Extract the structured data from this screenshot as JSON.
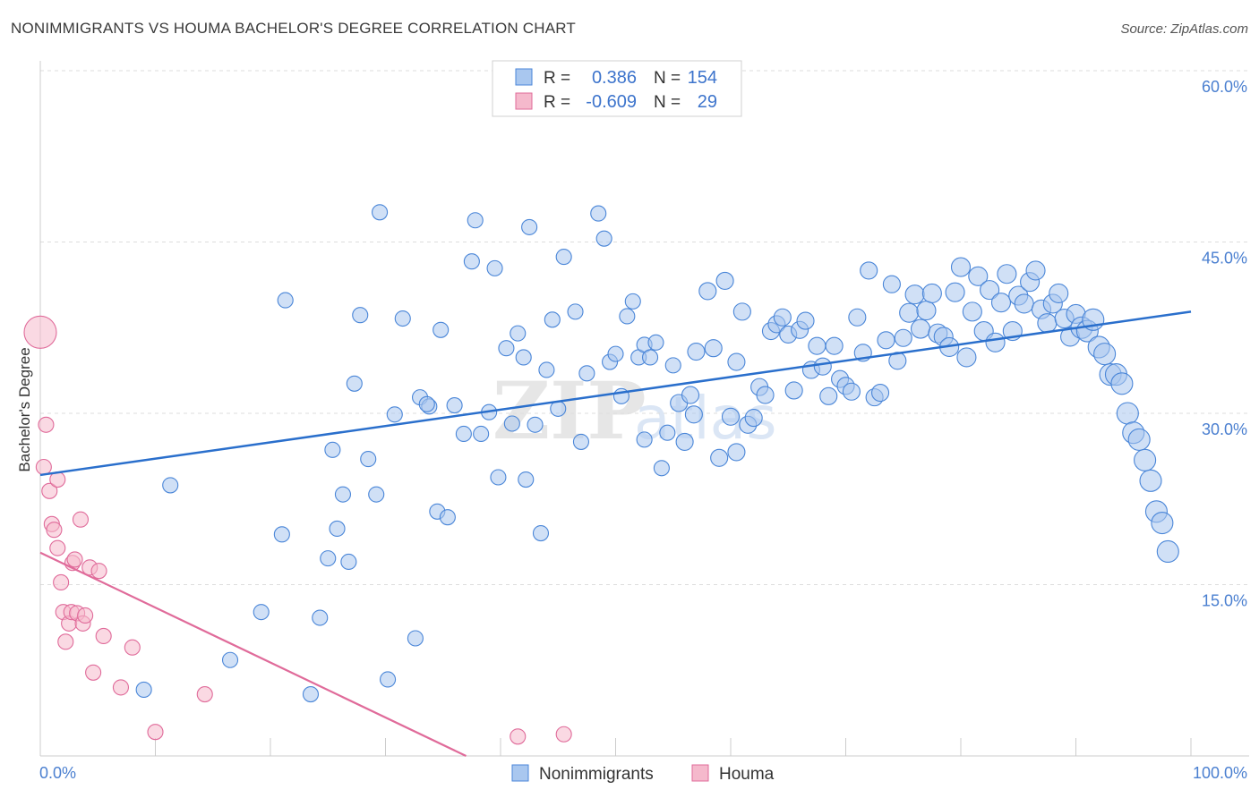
{
  "title": "NONIMMIGRANTS VS HOUMA BACHELOR'S DEGREE CORRELATION CHART",
  "source": "Source: ZipAtlas.com",
  "watermark": {
    "zip": "ZIP",
    "atlas": "atlas"
  },
  "legend": {
    "rows": [
      {
        "r_label": "R =",
        "r_value": "0.386",
        "n_label": "N =",
        "n_value": "154"
      },
      {
        "r_label": "R =",
        "r_value": "-0.609",
        "n_label": "N =",
        "n_value": "29"
      }
    ]
  },
  "bottom_legend": [
    "Nonimmigrants",
    "Houma"
  ],
  "chart_data": {
    "type": "scatter",
    "title": "NONIMMIGRANTS VS HOUMA BACHELOR'S DEGREE CORRELATION CHART",
    "xlabel": "",
    "ylabel": "Bachelor's Degree",
    "xlim": [
      0,
      100
    ],
    "ylim": [
      0,
      60
    ],
    "x_tick_labels": [
      "0.0%",
      "100.0%"
    ],
    "y_ticks": [
      15,
      30,
      45,
      60
    ],
    "y_tick_labels": [
      "15.0%",
      "30.0%",
      "45.0%",
      "60.0%"
    ],
    "grid": true,
    "colors": {
      "blue": "#4a86d8",
      "blue_fill": "#a9c7ef",
      "pink": "#e06b9a",
      "pink_fill": "#f5b9cc",
      "blue_line": "#2a6fcc",
      "pink_line": "#e06b9a"
    },
    "series": [
      {
        "name": "Nonimmigrants",
        "color": "#4a86d8",
        "trend": {
          "x": [
            0,
            100
          ],
          "y": [
            24.6,
            38.9
          ]
        },
        "points": [
          [
            9,
            5.8
          ],
          [
            11.3,
            23.7
          ],
          [
            16.5,
            8.4
          ],
          [
            19.2,
            12.6
          ],
          [
            21,
            19.4
          ],
          [
            21.3,
            39.9
          ],
          [
            23.5,
            5.4
          ],
          [
            24.3,
            12.1
          ],
          [
            25,
            17.3
          ],
          [
            25.4,
            26.8
          ],
          [
            25.8,
            19.9
          ],
          [
            26.3,
            22.9
          ],
          [
            26.8,
            17
          ],
          [
            27.3,
            32.6
          ],
          [
            27.8,
            38.6
          ],
          [
            28.5,
            26
          ],
          [
            29.2,
            22.9
          ],
          [
            29.5,
            47.6
          ],
          [
            30.2,
            6.7
          ],
          [
            30.8,
            29.9
          ],
          [
            31.5,
            38.3
          ],
          [
            32.6,
            10.3
          ],
          [
            33,
            31.4
          ],
          [
            33.8,
            30.6
          ],
          [
            34.5,
            21.4
          ],
          [
            34.8,
            37.3
          ],
          [
            35.4,
            20.9
          ],
          [
            36,
            30.7
          ],
          [
            36.8,
            28.2
          ],
          [
            37.5,
            43.3
          ],
          [
            37.8,
            46.9
          ],
          [
            38.3,
            28.2
          ],
          [
            39,
            30.1
          ],
          [
            39.5,
            42.7
          ],
          [
            39.8,
            24.4
          ],
          [
            40.5,
            35.7
          ],
          [
            41,
            29.1
          ],
          [
            41.5,
            37
          ],
          [
            42,
            34.9
          ],
          [
            42.5,
            46.3
          ],
          [
            43,
            29
          ],
          [
            43.5,
            19.5
          ],
          [
            44,
            33.8
          ],
          [
            44.5,
            38.2
          ],
          [
            45,
            30.4
          ],
          [
            45.5,
            43.7
          ],
          [
            46,
            58.9
          ],
          [
            46.5,
            38.9
          ],
          [
            47,
            27.5
          ],
          [
            47.5,
            33.5
          ],
          [
            48.5,
            47.5
          ],
          [
            49,
            45.3
          ],
          [
            49.5,
            34.5
          ],
          [
            50,
            35.2
          ],
          [
            50.5,
            31.5
          ],
          [
            51,
            38.5
          ],
          [
            51.5,
            39.8
          ],
          [
            52,
            34.9
          ],
          [
            52.5,
            36
          ],
          [
            53,
            34.9
          ],
          [
            53.5,
            36.2
          ],
          [
            54,
            25.2
          ],
          [
            54.5,
            28.3
          ],
          [
            55,
            34.2
          ],
          [
            55.5,
            30.9
          ],
          [
            56,
            27.5
          ],
          [
            56.5,
            31.6
          ],
          [
            57,
            35.4
          ],
          [
            58,
            40.7
          ],
          [
            58.5,
            35.7
          ],
          [
            59,
            26.1
          ],
          [
            59.5,
            41.6
          ],
          [
            60,
            29.7
          ],
          [
            60.5,
            34.5
          ],
          [
            61,
            38.9
          ],
          [
            61.5,
            29
          ],
          [
            62,
            29.6
          ],
          [
            62.5,
            32.3
          ],
          [
            63,
            31.6
          ],
          [
            63.5,
            37.2
          ],
          [
            64,
            37.8
          ],
          [
            64.5,
            38.4
          ],
          [
            65,
            36.9
          ],
          [
            65.5,
            32
          ],
          [
            66,
            37.3
          ],
          [
            66.5,
            38.1
          ],
          [
            67,
            33.8
          ],
          [
            67.5,
            35.9
          ],
          [
            68,
            34.1
          ],
          [
            68.5,
            31.5
          ],
          [
            69,
            35.9
          ],
          [
            69.5,
            33
          ],
          [
            70,
            32.4
          ],
          [
            70.5,
            31.9
          ],
          [
            71,
            38.4
          ],
          [
            71.5,
            35.3
          ],
          [
            72,
            42.5
          ],
          [
            72.5,
            31.4
          ],
          [
            73,
            31.8
          ],
          [
            73.5,
            36.4
          ],
          [
            74,
            41.3
          ],
          [
            74.5,
            34.6
          ],
          [
            75,
            36.6
          ],
          [
            75.5,
            38.8
          ],
          [
            76,
            40.4
          ],
          [
            76.5,
            37.4
          ],
          [
            77,
            39
          ],
          [
            77.5,
            40.5
          ],
          [
            78,
            37
          ],
          [
            78.5,
            36.7
          ],
          [
            79,
            35.8
          ],
          [
            79.5,
            40.6
          ],
          [
            80,
            42.8
          ],
          [
            80.5,
            34.9
          ],
          [
            81,
            38.9
          ],
          [
            81.5,
            42
          ],
          [
            82,
            37.2
          ],
          [
            82.5,
            40.8
          ],
          [
            83,
            36.2
          ],
          [
            83.5,
            39.7
          ],
          [
            84,
            42.2
          ],
          [
            84.5,
            37.2
          ],
          [
            85,
            40.3
          ],
          [
            85.5,
            39.6
          ],
          [
            86,
            41.5
          ],
          [
            86.5,
            42.5
          ],
          [
            87,
            39.1
          ],
          [
            87.5,
            37.9
          ],
          [
            88,
            39.6
          ],
          [
            88.5,
            40.5
          ],
          [
            89,
            38.3
          ],
          [
            89.5,
            36.7
          ],
          [
            90,
            38.7
          ],
          [
            90.5,
            37.5
          ],
          [
            91,
            37.2
          ],
          [
            91.5,
            38.2
          ],
          [
            92,
            35.8
          ],
          [
            92.5,
            35.2
          ],
          [
            93,
            33.4
          ],
          [
            93.5,
            33.4
          ],
          [
            94,
            32.6
          ],
          [
            94.5,
            30
          ],
          [
            95,
            28.3
          ],
          [
            95.5,
            27.7
          ],
          [
            96,
            25.9
          ],
          [
            96.5,
            24.1
          ],
          [
            97,
            21.4
          ],
          [
            97.5,
            20.4
          ],
          [
            98,
            17.9
          ],
          [
            56.8,
            29.9
          ],
          [
            52.5,
            27.7
          ],
          [
            60.5,
            26.6
          ],
          [
            33.6,
            30.8
          ],
          [
            42.2,
            24.2
          ]
        ]
      },
      {
        "name": "Houma",
        "color": "#e06b9a",
        "trend": {
          "x": [
            0,
            37
          ],
          "y": [
            17.8,
            0
          ]
        },
        "points": [
          [
            0,
            37.1
          ],
          [
            0.3,
            25.3
          ],
          [
            0.5,
            29
          ],
          [
            0.8,
            23.2
          ],
          [
            1,
            20.3
          ],
          [
            1.2,
            19.8
          ],
          [
            1.5,
            18.2
          ],
          [
            1.5,
            24.2
          ],
          [
            1.8,
            15.2
          ],
          [
            2,
            12.6
          ],
          [
            2.2,
            10
          ],
          [
            2.5,
            11.6
          ],
          [
            2.7,
            12.6
          ],
          [
            2.8,
            16.9
          ],
          [
            3,
            17.2
          ],
          [
            3.2,
            12.5
          ],
          [
            3.5,
            20.7
          ],
          [
            3.7,
            11.6
          ],
          [
            3.9,
            12.3
          ],
          [
            4.3,
            16.5
          ],
          [
            4.6,
            7.3
          ],
          [
            5.1,
            16.2
          ],
          [
            5.5,
            10.5
          ],
          [
            7,
            6
          ],
          [
            8,
            9.5
          ],
          [
            10,
            2.1
          ],
          [
            14.3,
            5.4
          ],
          [
            41.5,
            1.7
          ],
          [
            45.5,
            1.9
          ]
        ]
      }
    ]
  }
}
